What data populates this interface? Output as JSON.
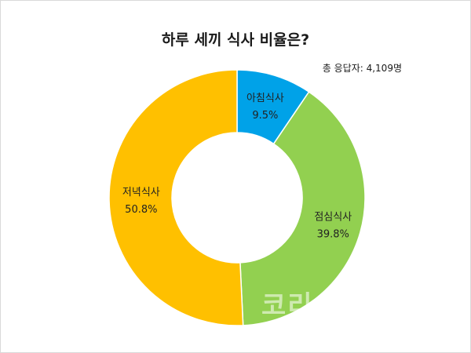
{
  "chart_data": {
    "type": "pie",
    "title": "하루 세끼 식사 비율은?",
    "subtitle": "총 응답자: 4,109명",
    "slices": [
      {
        "name": "아침식사",
        "value": 9.5,
        "label": "9.5%",
        "color": "#00a2e8"
      },
      {
        "name": "점심식사",
        "value": 39.8,
        "label": "39.8%",
        "color": "#92d050"
      },
      {
        "name": "저녁식사",
        "value": 50.8,
        "label": "50.8%",
        "color": "#ffc000"
      }
    ],
    "donut": true,
    "legend": "none"
  },
  "watermark": "코리"
}
